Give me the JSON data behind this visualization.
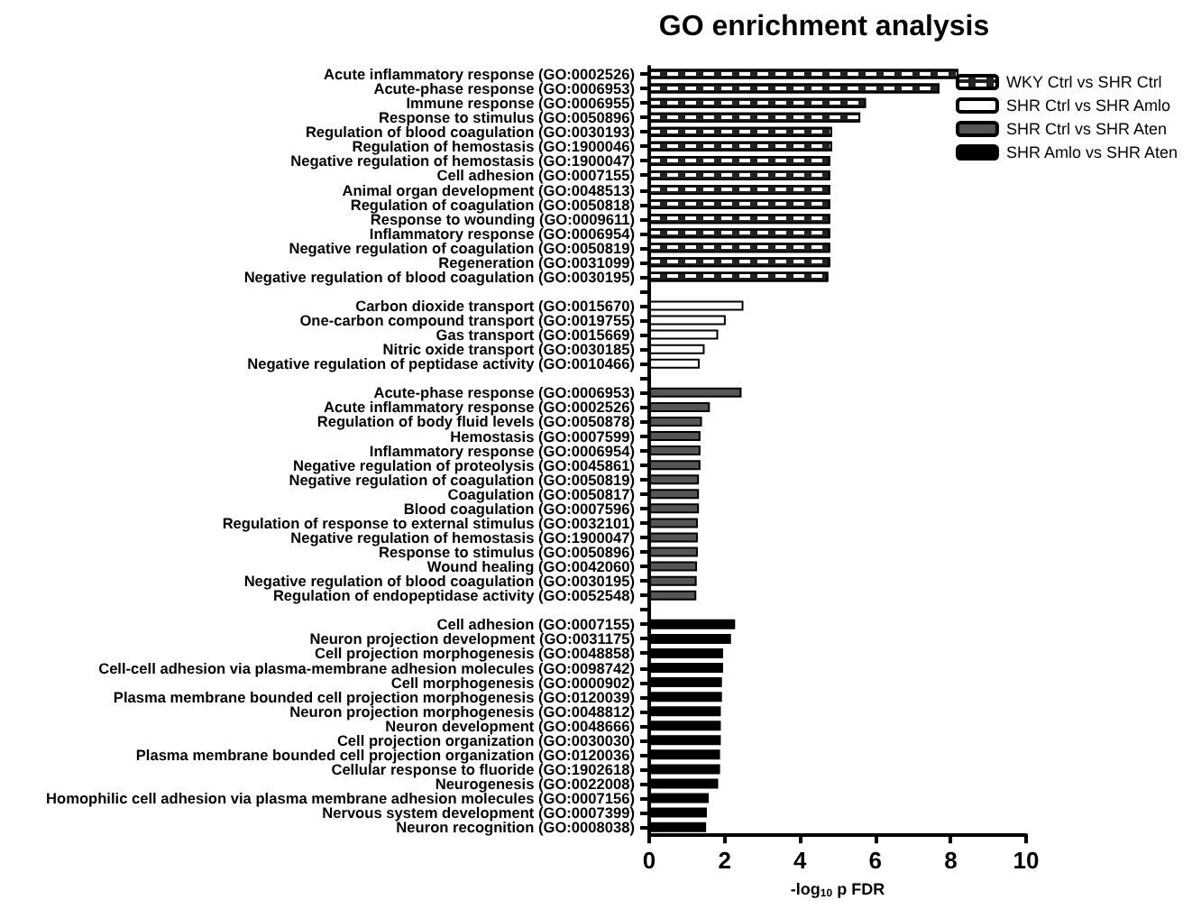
{
  "chart_data": {
    "type": "bar",
    "orientation": "horizontal",
    "title": "GO enrichment analysis",
    "xlabel": "-log$_{10}$ p FDR",
    "categories": [
      "Acute inflammatory response (GO:0002526)",
      "Acute-phase response (GO:0006953)",
      "Immune response (GO:0006955)",
      "Response to stimulus (GO:0050896)",
      "Regulation of blood coagulation (GO:0030193)",
      "Regulation of hemostasis (GO:1900046)",
      "Negative regulation of hemostasis (GO:1900047)",
      "Cell adhesion (GO:0007155)",
      "Animal organ development (GO:0048513)",
      "Regulation of coagulation (GO:0050818)",
      "Response to wounding (GO:0009611)",
      "Inflammatory response (GO:0006954)",
      "Negative regulation of coagulation (GO:0050819)",
      "Regeneration (GO:0031099)",
      "Negative regulation of blood coagulation (GO:0030195)",
      null,
      "Carbon dioxide transport (GO:0015670)",
      "One-carbon compound transport (GO:0019755)",
      "Gas transport (GO:0015669)",
      "Nitric oxide transport (GO:0030185)",
      "Negative regulation of peptidase activity (GO:0010466)",
      null,
      "Acute-phase response (GO:0006953)",
      "Acute inflammatory response (GO:0002526)",
      "Regulation of body fluid levels (GO:0050878)",
      "Hemostasis (GO:0007599)",
      "Inflammatory response (GO:0006954)",
      "Negative regulation of proteolysis (GO:0045861)",
      "Negative regulation of coagulation (GO:0050819)",
      "Coagulation (GO:0050817)",
      "Blood coagulation (GO:0007596)",
      "Regulation of response to external stimulus (GO:0032101)",
      "Negative regulation of hemostasis (GO:1900047)",
      "Response to stimulus (GO:0050896)",
      "Wound healing (GO:0042060)",
      "Negative regulation of blood coagulation (GO:0030195)",
      "Regulation of endopeptidase activity (GO:0052548)",
      null,
      "Cell adhesion (GO:0007155)",
      "Neuron projection development (GO:0031175)",
      "Cell projection morphogenesis (GO:0048858)",
      "Cell-cell adhesion via plasma-membrane adhesion molecules (GO:0098742)",
      "Cell morphogenesis (GO:0000902)",
      "Plasma membrane bounded cell projection morphogenesis (GO:0120039)",
      "Neuron projection morphogenesis (GO:0048812)",
      "Neuron development (GO:0048666)",
      "Cell projection organization (GO:0030030)",
      "Plasma membrane bounded cell projection organization (GO:0120036)",
      "Cellular response to fluoride (GO:1902618)",
      "Neurogenesis (GO:0022008)",
      "Homophilic cell adhesion via plasma membrane adhesion molecules (GO:0007156)",
      "Nervous system development (GO:0007399)",
      "Neuron recognition (GO:0008038)"
    ],
    "series": [
      {
        "name": "WKY Ctrl vs SHR Ctrl",
        "color": "#222222",
        "values": [
          8.2,
          7.7,
          5.75,
          5.6,
          4.85,
          4.85,
          4.8,
          4.8,
          4.8,
          4.8,
          4.8,
          4.8,
          4.8,
          4.8,
          4.75,
          null,
          null,
          null,
          null,
          null,
          null,
          null,
          null,
          null,
          null,
          null,
          null,
          null,
          null,
          null,
          null,
          null,
          null,
          null,
          null,
          null,
          null,
          null,
          null,
          null,
          null,
          null,
          null,
          null,
          null,
          null,
          null,
          null,
          null,
          null,
          null,
          null,
          null
        ]
      },
      {
        "name": "SHR Ctrl vs SHR Amlo",
        "color": "#ffffff",
        "values": [
          null,
          null,
          null,
          null,
          null,
          null,
          null,
          null,
          null,
          null,
          null,
          null,
          null,
          null,
          null,
          null,
          2.5,
          2.03,
          1.83,
          1.47,
          1.34,
          null,
          null,
          null,
          null,
          null,
          null,
          null,
          null,
          null,
          null,
          null,
          null,
          null,
          null,
          null,
          null,
          null,
          null,
          null,
          null,
          null,
          null,
          null,
          null,
          null,
          null,
          null,
          null,
          null,
          null,
          null,
          null
        ]
      },
      {
        "name": "SHR Ctrl vs SHR Aten",
        "color": "#555555",
        "values": [
          null,
          null,
          null,
          null,
          null,
          null,
          null,
          null,
          null,
          null,
          null,
          null,
          null,
          null,
          null,
          null,
          null,
          null,
          null,
          null,
          null,
          null,
          2.45,
          1.61,
          1.4,
          1.36,
          1.36,
          1.36,
          1.32,
          1.32,
          1.32,
          1.29,
          1.29,
          1.29,
          1.27,
          1.26,
          1.25,
          null,
          null,
          null,
          null,
          null,
          null,
          null,
          null,
          null,
          null,
          null,
          null,
          null,
          null,
          null,
          null
        ]
      },
      {
        "name": "SHR Amlo vs SHR Aten",
        "color": "#000000",
        "values": [
          null,
          null,
          null,
          null,
          null,
          null,
          null,
          null,
          null,
          null,
          null,
          null,
          null,
          null,
          null,
          null,
          null,
          null,
          null,
          null,
          null,
          null,
          null,
          null,
          null,
          null,
          null,
          null,
          null,
          null,
          null,
          null,
          null,
          null,
          null,
          null,
          null,
          null,
          2.28,
          2.17,
          1.96,
          1.96,
          1.93,
          1.93,
          1.9,
          1.9,
          1.9,
          1.88,
          1.88,
          1.83,
          1.58,
          1.53,
          1.51
        ]
      }
    ],
    "xlim": [
      0,
      10
    ],
    "xticks": [
      0,
      2,
      4,
      6,
      8,
      10
    ],
    "grid": false,
    "legend": "top right"
  }
}
